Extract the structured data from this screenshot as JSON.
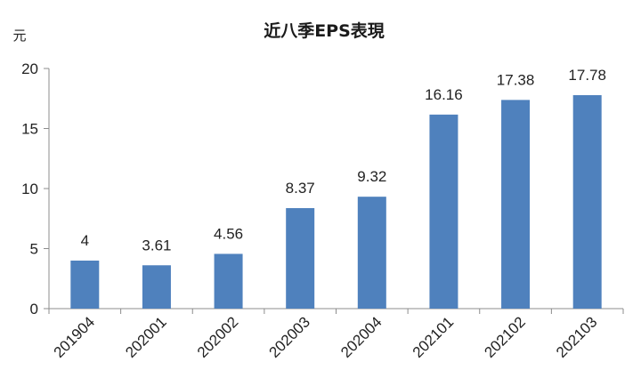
{
  "chart_data": {
    "type": "bar",
    "title": "近八季EPS表現",
    "ylabel": "元",
    "xlabel": "",
    "categories": [
      "201904",
      "202001",
      "202002",
      "202003",
      "202004",
      "202101",
      "202102",
      "202103"
    ],
    "values": [
      4,
      3.61,
      4.56,
      8.37,
      9.32,
      16.16,
      17.38,
      17.78
    ],
    "data_labels": [
      "4",
      "3.61",
      "4.56",
      "8.37",
      "9.32",
      "16.16",
      "17.38",
      "17.78"
    ],
    "ylim": [
      0,
      20
    ],
    "yticks": [
      0,
      5,
      10,
      15,
      20
    ],
    "ytick_labels": [
      "0",
      "5",
      "10",
      "15",
      "20"
    ],
    "grid": false,
    "legend": "none",
    "bar_color": "#4f81bd"
  }
}
